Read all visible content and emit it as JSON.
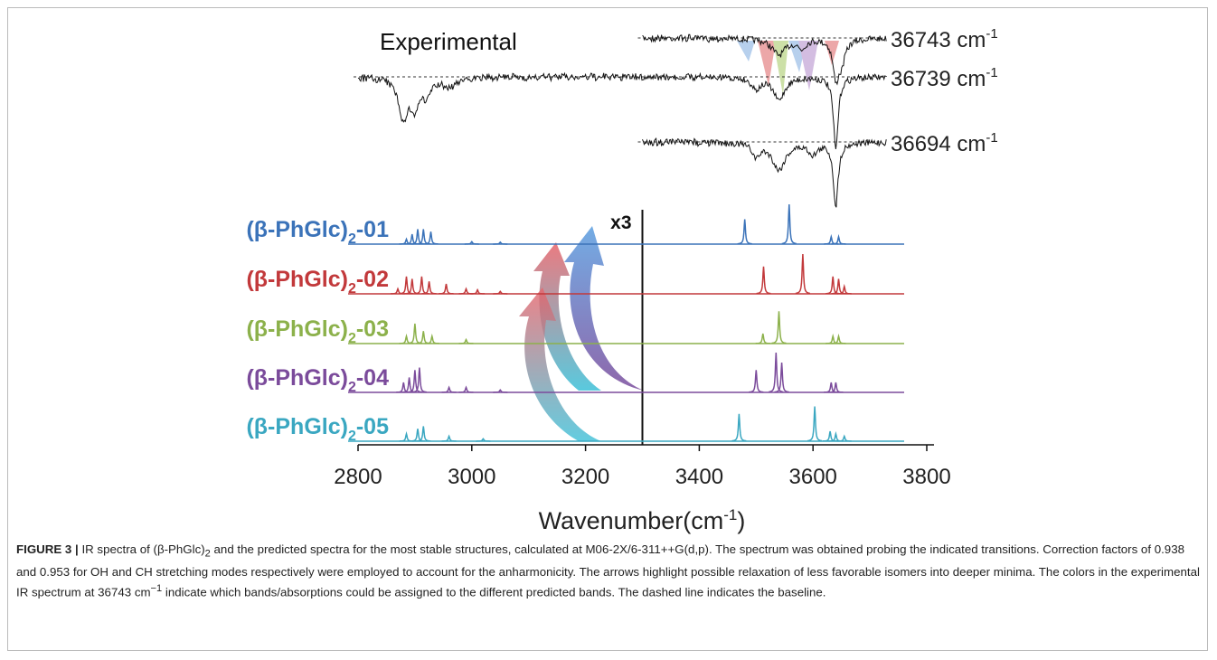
{
  "figure": {
    "experimental_title": "Experimental",
    "experimental_traces": [
      {
        "text": "36743 cm",
        "sup": "-1"
      },
      {
        "text": "36739 cm",
        "sup": "-1"
      },
      {
        "text": "36694 cm",
        "sup": "-1"
      }
    ],
    "scale_label": "x3",
    "x_axis": {
      "label": "Wavenumber(cm",
      "label_sup": "-1",
      "label_end": ")",
      "xlim": [
        2800,
        3800
      ],
      "xticks": [
        2800,
        3000,
        3200,
        3400,
        3600,
        3800
      ],
      "scale_break": 3300
    },
    "series": [
      {
        "name": "(β-PhGlc)",
        "sub": "2",
        "suffix": "-01",
        "color": "#3b73b9",
        "peaks": [
          {
            "x": 2885,
            "h": 0.1
          },
          {
            "x": 2895,
            "h": 0.2
          },
          {
            "x": 2905,
            "h": 0.3
          },
          {
            "x": 2915,
            "h": 0.3
          },
          {
            "x": 2928,
            "h": 0.25
          },
          {
            "x": 3000,
            "h": 0.05
          },
          {
            "x": 3050,
            "h": 0.04
          },
          {
            "x": 3480,
            "h": 0.5
          },
          {
            "x": 3558,
            "h": 0.8
          },
          {
            "x": 3632,
            "h": 0.15
          },
          {
            "x": 3645,
            "h": 0.15
          }
        ]
      },
      {
        "name": "(β-PhGlc)",
        "sub": "2",
        "suffix": "-02",
        "color": "#c2393b",
        "peaks": [
          {
            "x": 2870,
            "h": 0.1
          },
          {
            "x": 2885,
            "h": 0.35
          },
          {
            "x": 2895,
            "h": 0.3
          },
          {
            "x": 2912,
            "h": 0.35
          },
          {
            "x": 2925,
            "h": 0.25
          },
          {
            "x": 2955,
            "h": 0.2
          },
          {
            "x": 2990,
            "h": 0.1
          },
          {
            "x": 3010,
            "h": 0.08
          },
          {
            "x": 3050,
            "h": 0.05
          },
          {
            "x": 3513,
            "h": 0.55
          },
          {
            "x": 3582,
            "h": 0.8
          },
          {
            "x": 3635,
            "h": 0.35
          },
          {
            "x": 3645,
            "h": 0.3
          },
          {
            "x": 3655,
            "h": 0.15
          }
        ]
      },
      {
        "name": "(β-PhGlc)",
        "sub": "2",
        "suffix": "-03",
        "color": "#8cb14b",
        "peaks": [
          {
            "x": 2885,
            "h": 0.15
          },
          {
            "x": 2900,
            "h": 0.4
          },
          {
            "x": 2915,
            "h": 0.25
          },
          {
            "x": 2930,
            "h": 0.15
          },
          {
            "x": 2990,
            "h": 0.08
          },
          {
            "x": 3512,
            "h": 0.2
          },
          {
            "x": 3540,
            "h": 0.65
          },
          {
            "x": 3635,
            "h": 0.15
          },
          {
            "x": 3645,
            "h": 0.15
          }
        ]
      },
      {
        "name": "(β-PhGlc)",
        "sub": "2",
        "suffix": "-04",
        "color": "#7b4b9b",
        "peaks": [
          {
            "x": 2880,
            "h": 0.2
          },
          {
            "x": 2890,
            "h": 0.3
          },
          {
            "x": 2900,
            "h": 0.45
          },
          {
            "x": 2908,
            "h": 0.5
          },
          {
            "x": 2960,
            "h": 0.1
          },
          {
            "x": 2990,
            "h": 0.1
          },
          {
            "x": 3050,
            "h": 0.05
          },
          {
            "x": 3500,
            "h": 0.45
          },
          {
            "x": 3535,
            "h": 0.8
          },
          {
            "x": 3545,
            "h": 0.6
          },
          {
            "x": 3632,
            "h": 0.2
          },
          {
            "x": 3640,
            "h": 0.2
          }
        ]
      },
      {
        "name": "(β-PhGlc)",
        "sub": "2",
        "suffix": "-05",
        "color": "#3aa7c1",
        "peaks": [
          {
            "x": 2885,
            "h": 0.15
          },
          {
            "x": 2905,
            "h": 0.25
          },
          {
            "x": 2915,
            "h": 0.3
          },
          {
            "x": 2960,
            "h": 0.1
          },
          {
            "x": 3020,
            "h": 0.05
          },
          {
            "x": 3470,
            "h": 0.55
          },
          {
            "x": 3603,
            "h": 0.7
          },
          {
            "x": 3630,
            "h": 0.2
          },
          {
            "x": 3640,
            "h": 0.15
          },
          {
            "x": 3655,
            "h": 0.1
          }
        ]
      }
    ]
  },
  "caption": {
    "label": "FIGURE 3 |",
    "t1": " IR spectra of (β-PhGlc)",
    "sub1": "2",
    "t2": " and the predicted spectra for the most stable structures, calculated at M06-2X/6-311++G(d,p). The spectrum was obtained probing the indicated transitions. Correction factors of 0.938 and 0.953 for OH and CH stretching modes respectively were employed to account for the anharmonicity. The arrows highlight possible relaxation of less favorable isomers into deeper minima. The colors in the experimental IR spectrum at 36743 cm",
    "sup1": "−1",
    "t3": " indicate which bands/absorptions could be assigned to the different predicted bands. The dashed line indicates the baseline."
  }
}
